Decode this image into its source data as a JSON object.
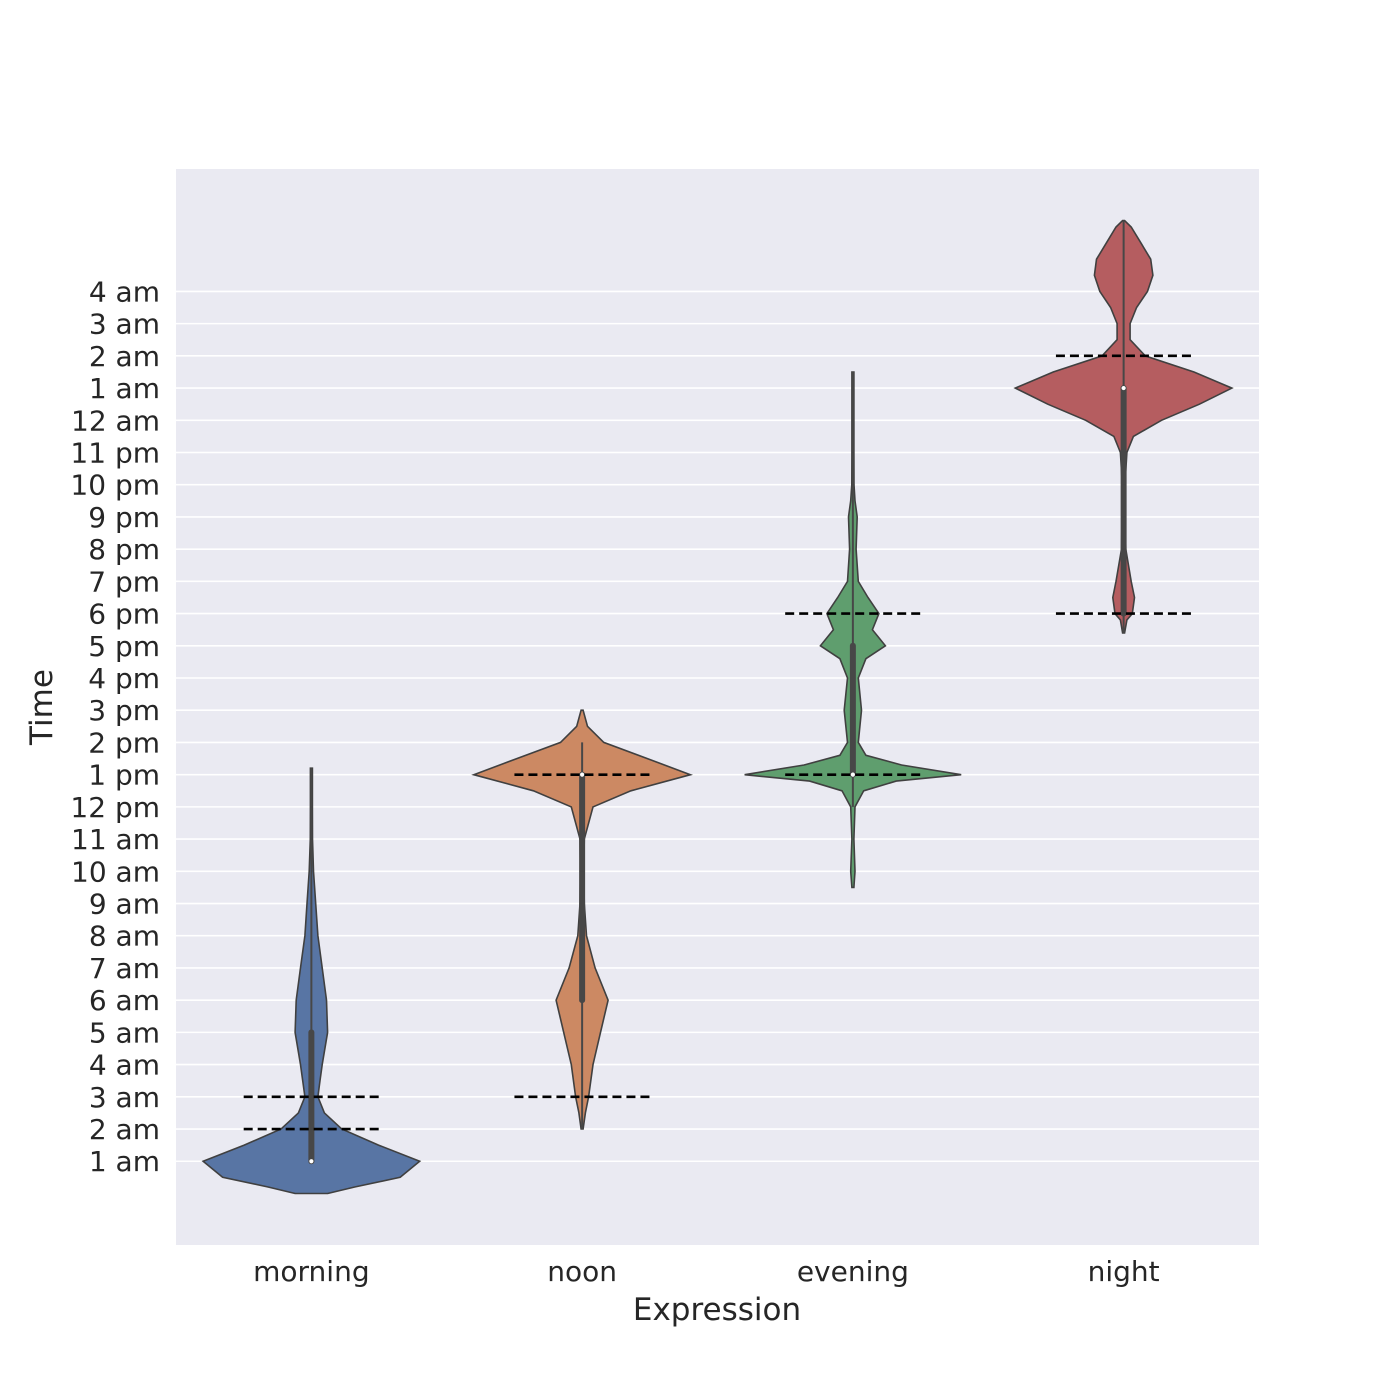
{
  "chart_data": {
    "type": "violin",
    "xlabel": "Expression",
    "ylabel": "Time",
    "y_unit": "hours since 00:00 of the first day (tick labels shown as clock times)",
    "ylim": [
      -1.6,
      31.8
    ],
    "grid": true,
    "y_ticks": [
      {
        "value": 1,
        "label": "1 am"
      },
      {
        "value": 2,
        "label": "2 am"
      },
      {
        "value": 3,
        "label": "3 am"
      },
      {
        "value": 4,
        "label": "4 am"
      },
      {
        "value": 5,
        "label": "5 am"
      },
      {
        "value": 6,
        "label": "6 am"
      },
      {
        "value": 7,
        "label": "7 am"
      },
      {
        "value": 8,
        "label": "8 am"
      },
      {
        "value": 9,
        "label": "9 am"
      },
      {
        "value": 10,
        "label": "10 am"
      },
      {
        "value": 11,
        "label": "11 am"
      },
      {
        "value": 12,
        "label": "12 pm"
      },
      {
        "value": 13,
        "label": "1 pm"
      },
      {
        "value": 14,
        "label": "2 pm"
      },
      {
        "value": 15,
        "label": "3 pm"
      },
      {
        "value": 16,
        "label": "4 pm"
      },
      {
        "value": 17,
        "label": "5 pm"
      },
      {
        "value": 18,
        "label": "6 pm"
      },
      {
        "value": 19,
        "label": "7 pm"
      },
      {
        "value": 20,
        "label": "8 pm"
      },
      {
        "value": 21,
        "label": "9 pm"
      },
      {
        "value": 22,
        "label": "10 pm"
      },
      {
        "value": 23,
        "label": "11 pm"
      },
      {
        "value": 24,
        "label": "12 am"
      },
      {
        "value": 25,
        "label": "1 am"
      },
      {
        "value": 26,
        "label": "2 am"
      },
      {
        "value": 27,
        "label": "3 am"
      },
      {
        "value": 28,
        "label": "4 am"
      }
    ],
    "categories": [
      "morning",
      "noon",
      "evening",
      "night"
    ],
    "violins": [
      {
        "name": "morning",
        "color": "#5875a4",
        "median": 1,
        "q1": 1,
        "q3": 5,
        "whisker_low": 1,
        "whisker_high": 13.2,
        "reference_lines": [
          2,
          3
        ],
        "profile": [
          [
            0,
            0.15
          ],
          [
            0.2,
            0.4
          ],
          [
            0.5,
            0.82
          ],
          [
            1,
            1.0
          ],
          [
            1.5,
            0.62
          ],
          [
            2,
            0.28
          ],
          [
            2.5,
            0.12
          ],
          [
            3,
            0.06
          ],
          [
            3.5,
            0.08
          ],
          [
            4,
            0.1
          ],
          [
            5,
            0.15
          ],
          [
            6,
            0.14
          ],
          [
            7,
            0.1
          ],
          [
            8,
            0.06
          ],
          [
            9,
            0.04
          ],
          [
            10,
            0.02
          ],
          [
            11,
            0.01
          ],
          [
            12,
            0.005
          ],
          [
            13.2,
            0.003
          ]
        ]
      },
      {
        "name": "noon",
        "color": "#cc8963",
        "median": 13,
        "q1": 6,
        "q3": 13,
        "whisker_low": 2,
        "whisker_high": 14,
        "reference_lines": [
          3,
          13
        ],
        "profile": [
          [
            2,
            0.0
          ],
          [
            2.5,
            0.03
          ],
          [
            3,
            0.06
          ],
          [
            4,
            0.1
          ],
          [
            5,
            0.17
          ],
          [
            6,
            0.24
          ],
          [
            7,
            0.12
          ],
          [
            8,
            0.04
          ],
          [
            9,
            0.02
          ],
          [
            10,
            0.015
          ],
          [
            11,
            0.02
          ],
          [
            12,
            0.1
          ],
          [
            12.5,
            0.45
          ],
          [
            13,
            1.0
          ],
          [
            13.5,
            0.6
          ],
          [
            14,
            0.2
          ],
          [
            14.5,
            0.05
          ],
          [
            15,
            0.0
          ]
        ]
      },
      {
        "name": "evening",
        "color": "#5f9e6e",
        "median": 13,
        "q1": 13,
        "q3": 17,
        "whisker_low": 12,
        "whisker_high": 25.5,
        "reference_lines": [
          13,
          18
        ],
        "profile": [
          [
            9.5,
            0.0
          ],
          [
            10,
            0.02
          ],
          [
            11,
            0.006
          ],
          [
            12,
            0.02
          ],
          [
            12.5,
            0.1
          ],
          [
            12.8,
            0.4
          ],
          [
            13,
            1.0
          ],
          [
            13.3,
            0.45
          ],
          [
            13.6,
            0.12
          ],
          [
            14,
            0.05
          ],
          [
            15,
            0.08
          ],
          [
            16,
            0.05
          ],
          [
            16.6,
            0.12
          ],
          [
            17,
            0.3
          ],
          [
            17.5,
            0.18
          ],
          [
            18,
            0.24
          ],
          [
            18.5,
            0.14
          ],
          [
            19,
            0.05
          ],
          [
            20,
            0.03
          ],
          [
            21,
            0.04
          ],
          [
            21.5,
            0.02
          ],
          [
            22,
            0.01
          ],
          [
            23,
            0.005
          ],
          [
            24,
            0.003
          ],
          [
            25.5,
            0.002
          ]
        ]
      },
      {
        "name": "night",
        "color": "#b55d60",
        "median": 25,
        "q1": 18,
        "q3": 25,
        "whisker_low": 17.4,
        "whisker_high": 30.2,
        "reference_lines": [
          18,
          26
        ],
        "profile": [
          [
            17.4,
            0.0
          ],
          [
            17.8,
            0.03
          ],
          [
            18,
            0.08
          ],
          [
            18.5,
            0.1
          ],
          [
            19,
            0.07
          ],
          [
            20,
            0.02
          ],
          [
            21,
            0.015
          ],
          [
            22,
            0.012
          ],
          [
            23,
            0.03
          ],
          [
            23.5,
            0.09
          ],
          [
            24,
            0.35
          ],
          [
            24.5,
            0.7
          ],
          [
            25,
            1.0
          ],
          [
            25.5,
            0.65
          ],
          [
            26,
            0.2
          ],
          [
            26.5,
            0.06
          ],
          [
            27,
            0.06
          ],
          [
            27.5,
            0.12
          ],
          [
            28,
            0.22
          ],
          [
            28.5,
            0.27
          ],
          [
            29,
            0.25
          ],
          [
            29.5,
            0.16
          ],
          [
            30,
            0.07
          ],
          [
            30.2,
            0.0
          ]
        ]
      }
    ]
  }
}
